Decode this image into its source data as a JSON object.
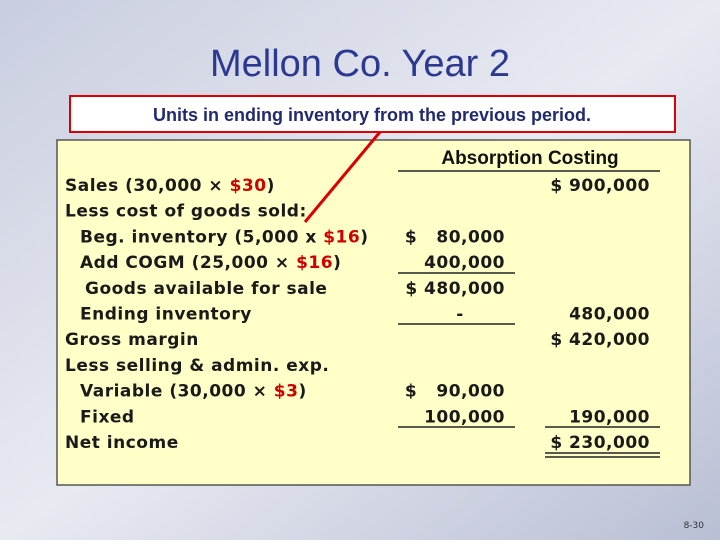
{
  "header": {
    "title": "Mellon Co. Year 2",
    "callout": "Units in ending inventory from the previous period."
  },
  "table": {
    "heading": "Absorption Costing",
    "rows": [
      {
        "label": "Sales (30,000 × ",
        "red": "$30",
        "end": ")",
        "c2": "$ 900,000"
      },
      {
        "label": "Less cost of goods sold:"
      },
      {
        "label": "Beg. inventory (5,000 x ",
        "red": "$16",
        "end": ")",
        "c1": "$   80,000"
      },
      {
        "label": "Add COGM (25,000 × ",
        "red": "$16",
        "end": ")",
        "c1": "400,000"
      },
      {
        "label": "Goods available for sale",
        "c1": "$ 480,000"
      },
      {
        "label": "Ending inventory",
        "c1": "-",
        "c2": "480,000"
      },
      {
        "label": "Gross margin",
        "c2": "$ 420,000"
      },
      {
        "label": "Less selling & admin. exp."
      },
      {
        "label": "Variable (30,000 × ",
        "red": "$3",
        "end": ")",
        "c1": "$   90,000"
      },
      {
        "label": "Fixed",
        "c1": "100,000",
        "c2": "190,000"
      },
      {
        "label": "Net income",
        "c2": "$ 230,000"
      }
    ]
  },
  "footer": {
    "page": "8-30"
  }
}
